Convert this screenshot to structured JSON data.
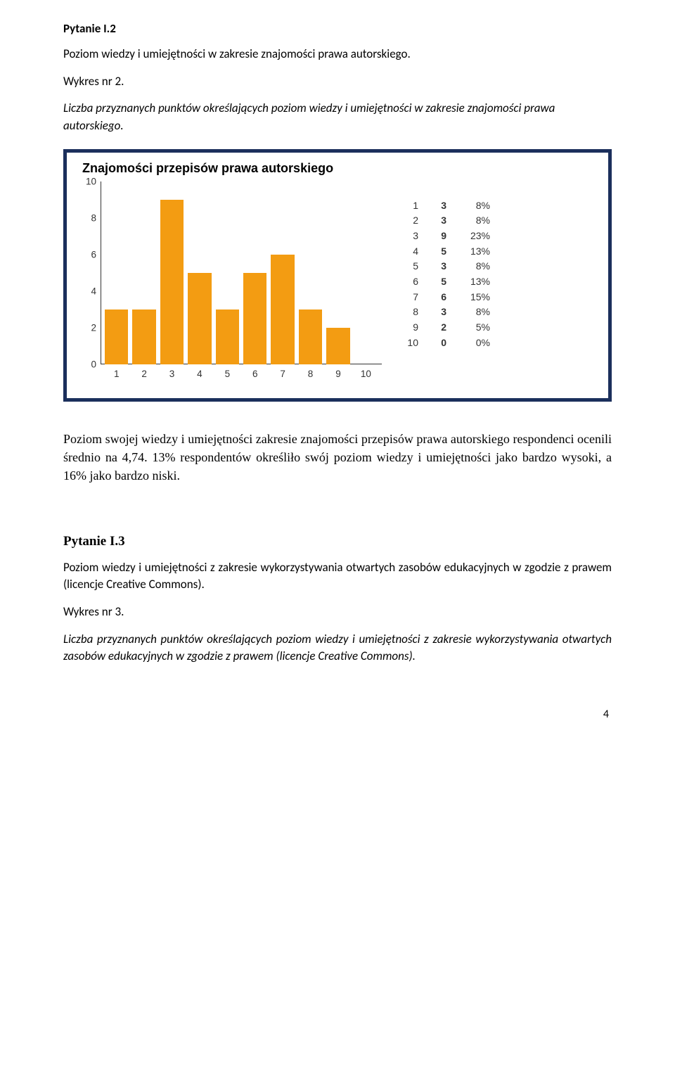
{
  "section1": {
    "heading": "Pytanie I.2",
    "p1": "Poziom wiedzy i umiejętności w zakresie znajomości prawa autorskiego.",
    "p2": "Wykres nr 2.",
    "p3": "Liczba przyznanych punktów określających poziom wiedzy i umiejętności w zakresie znajomości prawa autorskiego."
  },
  "chart": {
    "title": "Znajomości przepisów prawa autorskiego",
    "bar_color": "#f39c12",
    "axis_color": "#333333",
    "background": "#ffffff",
    "border_color": "#1b2f5c",
    "ylim_max": 10,
    "yticks": [
      0,
      2,
      4,
      6,
      8,
      10
    ],
    "categories": [
      "1",
      "2",
      "3",
      "4",
      "5",
      "6",
      "7",
      "8",
      "9",
      "10"
    ],
    "values": [
      3,
      3,
      9,
      5,
      3,
      5,
      6,
      3,
      2,
      0
    ],
    "legend": [
      {
        "cat": "1",
        "count": "3",
        "pct": "8%"
      },
      {
        "cat": "2",
        "count": "3",
        "pct": "8%"
      },
      {
        "cat": "3",
        "count": "9",
        "pct": "23%"
      },
      {
        "cat": "4",
        "count": "5",
        "pct": "13%"
      },
      {
        "cat": "5",
        "count": "3",
        "pct": "8%"
      },
      {
        "cat": "6",
        "count": "5",
        "pct": "13%"
      },
      {
        "cat": "7",
        "count": "6",
        "pct": "15%"
      },
      {
        "cat": "8",
        "count": "3",
        "pct": "8%"
      },
      {
        "cat": "9",
        "count": "2",
        "pct": "5%"
      },
      {
        "cat": "10",
        "count": "0",
        "pct": "0%"
      }
    ]
  },
  "analysis": "Poziom swojej wiedzy i umiejętności  zakresie znajomości przepisów prawa autorskiego respondenci ocenili średnio na 4,74.  13% respondentów określiło swój poziom wiedzy i umiejętności jako bardzo wysoki, a 16% jako bardzo niski.",
  "section2": {
    "heading": "Pytanie I.3",
    "p1": "Poziom wiedzy i umiejętności z zakresie wykorzystywania otwartych zasobów edukacyjnych w zgodzie z prawem (licencje Creative Commons).",
    "p2": "Wykres nr 3.",
    "p3": "Liczba przyznanych punktów określających poziom wiedzy i umiejętności z zakresie wykorzystywania otwartych zasobów edukacyjnych w zgodzie z prawem (licencje Creative Commons)."
  },
  "page_number": "4"
}
